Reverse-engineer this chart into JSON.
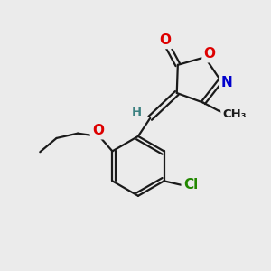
{
  "background_color": "#ebebeb",
  "bond_color": "#1a1a1a",
  "atom_colors": {
    "O": "#dd0000",
    "N": "#0000cc",
    "Cl": "#228800",
    "C": "#1a1a1a",
    "H": "#3a8080"
  },
  "font_size_atoms": 11,
  "font_size_small": 9.5,
  "line_width": 1.6
}
